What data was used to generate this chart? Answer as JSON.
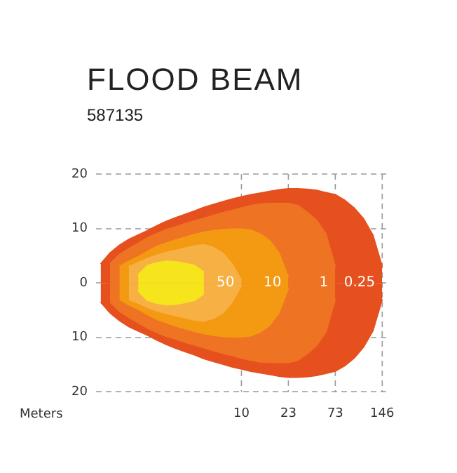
{
  "chart_data": {
    "type": "area",
    "title": "FLOOD BEAM",
    "subtitle": "587135",
    "xlabel": "Meters",
    "categories": [
      null,
      null,
      null,
      null,
      null,
      null,
      null,
      null,
      null,
      null,
      null,
      null,
      null,
      null,
      null,
      "10",
      null,
      null,
      null,
      null,
      "23",
      null,
      null,
      null,
      null,
      "73",
      null,
      null,
      null,
      null,
      "146"
    ],
    "ylim": [
      -20,
      20
    ],
    "yticks": [
      20,
      10,
      0,
      {
        "value": -10,
        "label": "10"
      },
      {
        "value": -20,
        "label": "20"
      }
    ],
    "grid": "y",
    "line_style": "dashed",
    "ref_lines": [
      {
        "axis": "x",
        "value": "10"
      },
      {
        "axis": "x",
        "value": "23"
      },
      {
        "axis": "x",
        "value": "73"
      },
      {
        "axis": "x",
        "value": "146"
      }
    ],
    "series": [
      {
        "color": "#e6501e",
        "values": [
          3.5,
          5.5,
          6.9,
          8,
          8.8,
          9.6,
          10.5,
          11.3,
          12,
          12.6,
          13.2,
          13.9,
          14.4,
          14.9,
          15.4,
          15.8,
          16.2,
          16.5,
          16.8,
          17.1,
          17.3,
          17.3,
          17.2,
          17,
          16.6,
          16.2,
          15.2,
          13.8,
          11.8,
          8.8,
          3
        ]
      },
      {
        "color": "#e6501e",
        "values": [
          -3.5,
          -5.5,
          -6.9,
          -8,
          -8.8,
          -9.6,
          -10.5,
          -11.3,
          -12,
          -12.6,
          -13.2,
          -13.9,
          -14.4,
          -14.9,
          -15.4,
          -15.8,
          -16.2,
          -16.5,
          -16.8,
          -17.1,
          -17.3,
          -17.3,
          -17.2,
          -17,
          -16.6,
          -16.2,
          -15.2,
          -13.8,
          -11.8,
          -8.8,
          -3
        ]
      },
      {
        "color": "#ee7322",
        "values": [
          null,
          3.5,
          5.2,
          6.3,
          7.3,
          8.3,
          9.1,
          9.8,
          10.3,
          10.9,
          11.4,
          11.9,
          12.4,
          12.9,
          13.3,
          13.8,
          14.2,
          14.5,
          14.6,
          14.6,
          14.6,
          14.2,
          13,
          11.5,
          9,
          3,
          null,
          null,
          null,
          null,
          null
        ]
      },
      {
        "color": "#ee7322",
        "values": [
          null,
          -3.5,
          -5.2,
          -6.3,
          -7.3,
          -8.3,
          -9.1,
          -9.8,
          -10.3,
          -10.9,
          -11.4,
          -11.9,
          -12.4,
          -12.9,
          -13.3,
          -13.8,
          -14.2,
          -14.5,
          -14.6,
          -14.6,
          -14.6,
          -14.2,
          -13,
          -11.5,
          -9,
          -3,
          null,
          null,
          null,
          null,
          null
        ]
      },
      {
        "color": "#f39a12",
        "values": [
          null,
          null,
          3,
          4,
          4.8,
          5.8,
          6.7,
          7.3,
          7.9,
          8.4,
          8.9,
          9.3,
          9.6,
          9.8,
          9.9,
          9.9,
          9.7,
          9,
          7.8,
          5.5,
          1,
          null,
          null,
          null,
          null,
          null,
          null,
          null,
          null,
          null,
          null
        ]
      },
      {
        "color": "#f39a12",
        "values": [
          null,
          null,
          -3,
          -4,
          -4.8,
          -5.8,
          -6.7,
          -7.3,
          -7.9,
          -8.4,
          -8.9,
          -9.3,
          -9.6,
          -9.8,
          -9.9,
          -9.9,
          -9.7,
          -9,
          -7.8,
          -5.5,
          -1,
          null,
          null,
          null,
          null,
          null,
          null,
          null,
          null,
          null,
          null
        ]
      },
      {
        "color": "#f7b044",
        "values": [
          null,
          null,
          null,
          3,
          3.7,
          4.5,
          5.1,
          5.6,
          6,
          6.4,
          6.8,
          7,
          6.5,
          5.5,
          3.5,
          0.5,
          null,
          null,
          null,
          null,
          null,
          null,
          null,
          null,
          null,
          null,
          null,
          null,
          null,
          null,
          null
        ]
      },
      {
        "color": "#f7b044",
        "values": [
          null,
          null,
          null,
          -3,
          -3.7,
          -4.5,
          -5.1,
          -5.6,
          -6,
          -6.4,
          -6.8,
          -7,
          -6.5,
          -5.5,
          -3.5,
          -0.5,
          null,
          null,
          null,
          null,
          null,
          null,
          null,
          null,
          null,
          null,
          null,
          null,
          null,
          null,
          null
        ]
      },
      {
        "color": "#f6e41c",
        "values": [
          null,
          null,
          null,
          null,
          1.5,
          3.2,
          3.7,
          4,
          3.9,
          3.6,
          3.2,
          2,
          null,
          null,
          null,
          null,
          null,
          null,
          null,
          null,
          null,
          null,
          null,
          null,
          null,
          null,
          null,
          null,
          null,
          null,
          null
        ]
      },
      {
        "color": "#f6e41c",
        "values": [
          null,
          null,
          null,
          null,
          -1.5,
          -3.2,
          -3.7,
          -4,
          -3.9,
          -3.6,
          -3.2,
          -2,
          null,
          null,
          null,
          null,
          null,
          null,
          null,
          null,
          null,
          null,
          null,
          null,
          null,
          null,
          null,
          null,
          null,
          null,
          null
        ]
      }
    ],
    "annotations": [
      {
        "text": "50",
        "x": "10",
        "y": 0
      },
      {
        "text": "10",
        "x": "23",
        "y": 0
      },
      {
        "text": "1",
        "x": "73",
        "y": 0
      },
      {
        "text": "0.25",
        "x": "146",
        "y": 0
      }
    ]
  }
}
